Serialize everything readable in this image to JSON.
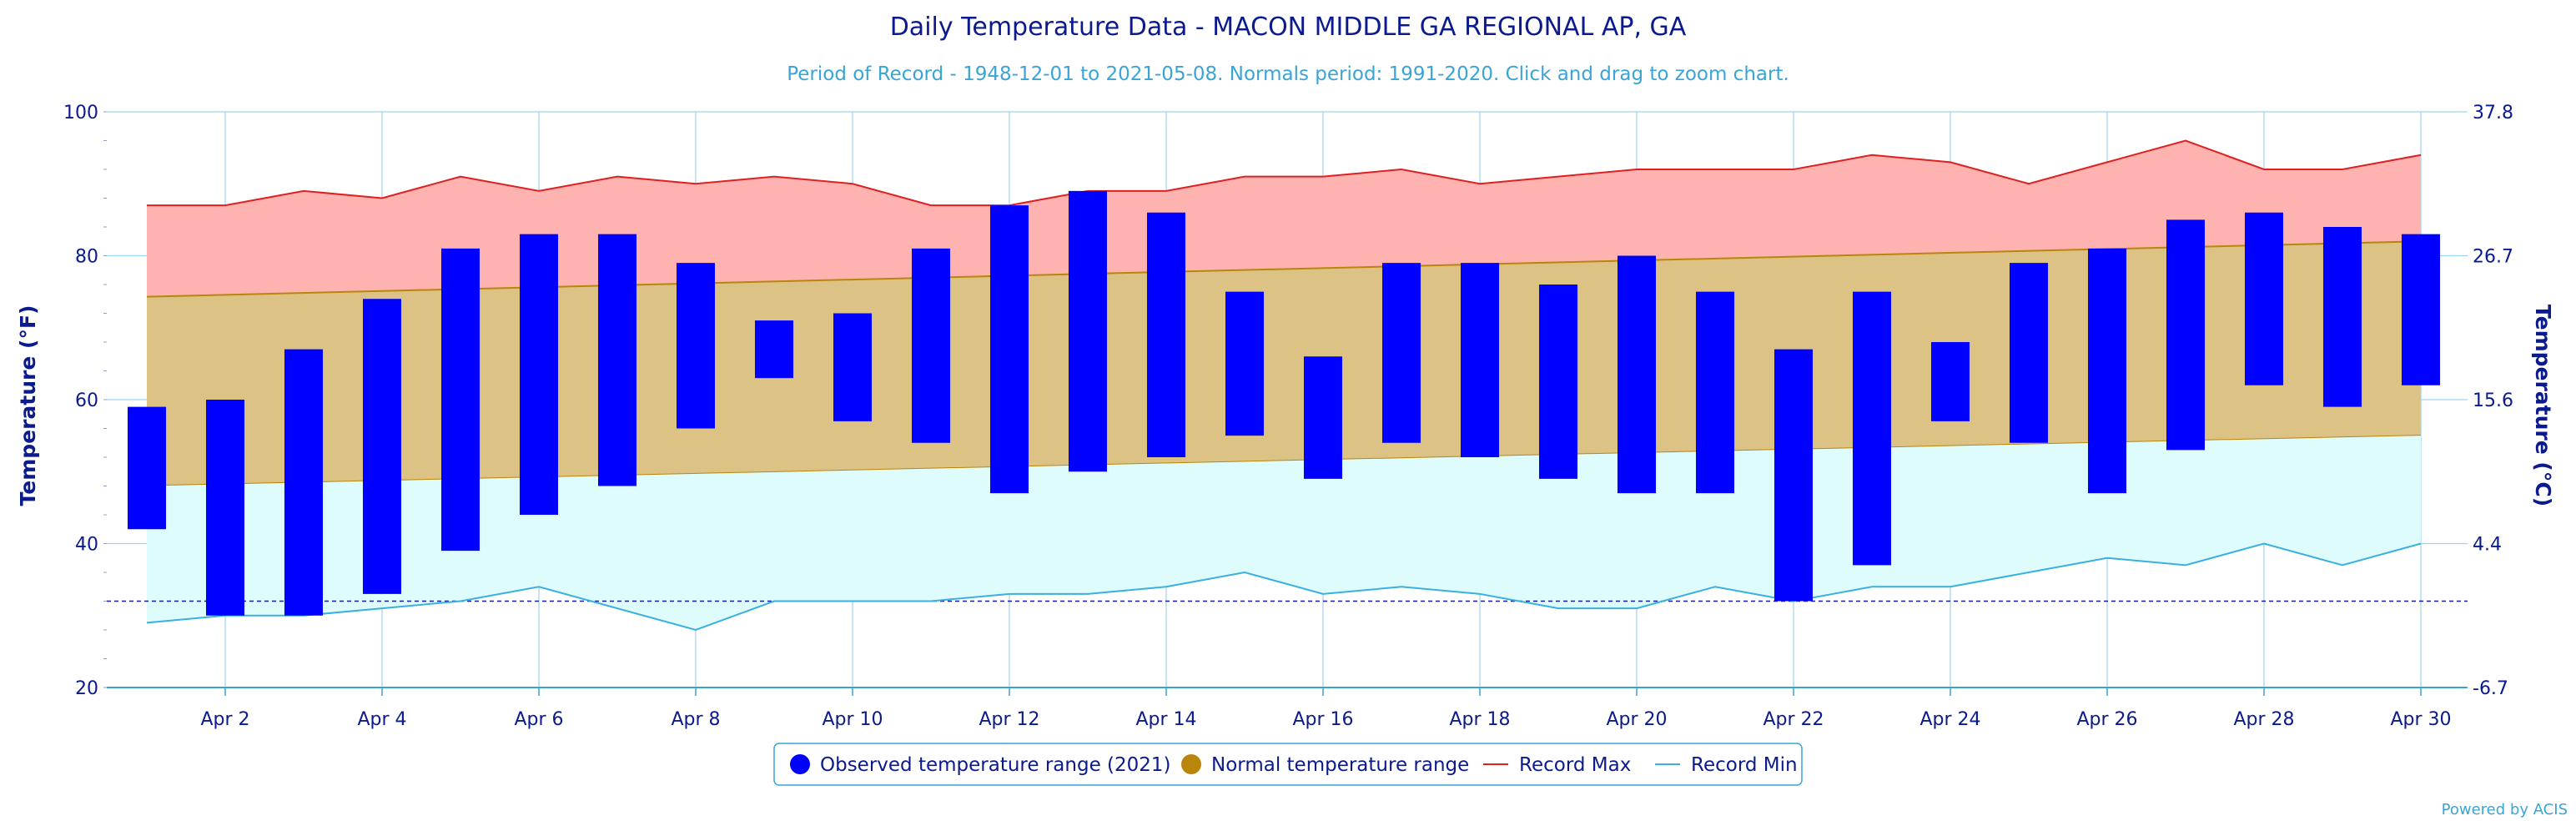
{
  "chart_data": {
    "type": "bar",
    "title": "Daily Temperature Data - MACON MIDDLE GA REGIONAL AP, GA",
    "subtitle": "Period of Record - 1948-12-01 to 2021-05-08. Normals period: 1991-2020. Click and drag to zoom chart.",
    "ylabel": "Temperature (°F)",
    "ylabel_right": "Temperature (°C)",
    "ylim": [
      20,
      100
    ],
    "y_ticks": [
      20,
      40,
      60,
      80,
      100
    ],
    "y_ticks_right": [
      "-6.7",
      "4.4",
      "15.6",
      "26.7",
      "37.8"
    ],
    "grid": true,
    "days": [
      1,
      2,
      3,
      4,
      5,
      6,
      7,
      8,
      9,
      10,
      11,
      12,
      13,
      14,
      15,
      16,
      17,
      18,
      19,
      20,
      21,
      22,
      23,
      24,
      25,
      26,
      27,
      28,
      29,
      30
    ],
    "x_tick_labels": [
      "Apr 2",
      "Apr 4",
      "Apr 6",
      "Apr 8",
      "Apr 10",
      "Apr 12",
      "Apr 14",
      "Apr 16",
      "Apr 18",
      "Apr 20",
      "Apr 22",
      "Apr 24",
      "Apr 26",
      "Apr 28",
      "Apr 30"
    ],
    "x_tick_days": [
      2,
      4,
      6,
      8,
      10,
      12,
      14,
      16,
      18,
      20,
      22,
      24,
      26,
      28,
      30
    ],
    "reference_line": 32,
    "series": [
      {
        "name": "Observed temperature range (2021)",
        "color": "#0000ff",
        "low": [
          42,
          30,
          30,
          33,
          39,
          44,
          48,
          56,
          63,
          57,
          54,
          47,
          50,
          52,
          55,
          49,
          54,
          52,
          49,
          47,
          47,
          32,
          37,
          57,
          54,
          47,
          53,
          62,
          59,
          62
        ],
        "high": [
          59,
          60,
          67,
          74,
          81,
          83,
          83,
          79,
          71,
          72,
          81,
          87,
          89,
          86,
          75,
          66,
          79,
          79,
          76,
          80,
          75,
          67,
          75,
          68,
          79,
          81,
          85,
          86,
          84,
          83
        ]
      },
      {
        "name": "Normal temperature range",
        "color": "#b8860b",
        "low_start": 48,
        "low_end": 55,
        "high_start": 74.3,
        "high_end": 82
      },
      {
        "name": "Record Max",
        "color": "#e02020",
        "values": [
          87,
          87,
          89,
          88,
          91,
          89,
          91,
          90,
          91,
          90,
          87,
          87,
          89,
          89,
          91,
          91,
          92,
          90,
          91,
          92,
          92,
          92,
          94,
          93,
          90,
          93,
          96,
          92,
          92,
          94
        ]
      },
      {
        "name": "Record Min",
        "color": "#3ab0e0",
        "values": [
          29,
          30,
          30,
          31,
          32,
          34,
          31,
          28,
          32,
          32,
          32,
          33,
          33,
          34,
          36,
          33,
          34,
          33,
          31,
          31,
          34,
          32,
          34,
          34,
          36,
          38,
          37,
          40,
          37,
          40
        ]
      }
    ],
    "legend_position": "bottom-center",
    "credit": "Powered by ACIS"
  }
}
